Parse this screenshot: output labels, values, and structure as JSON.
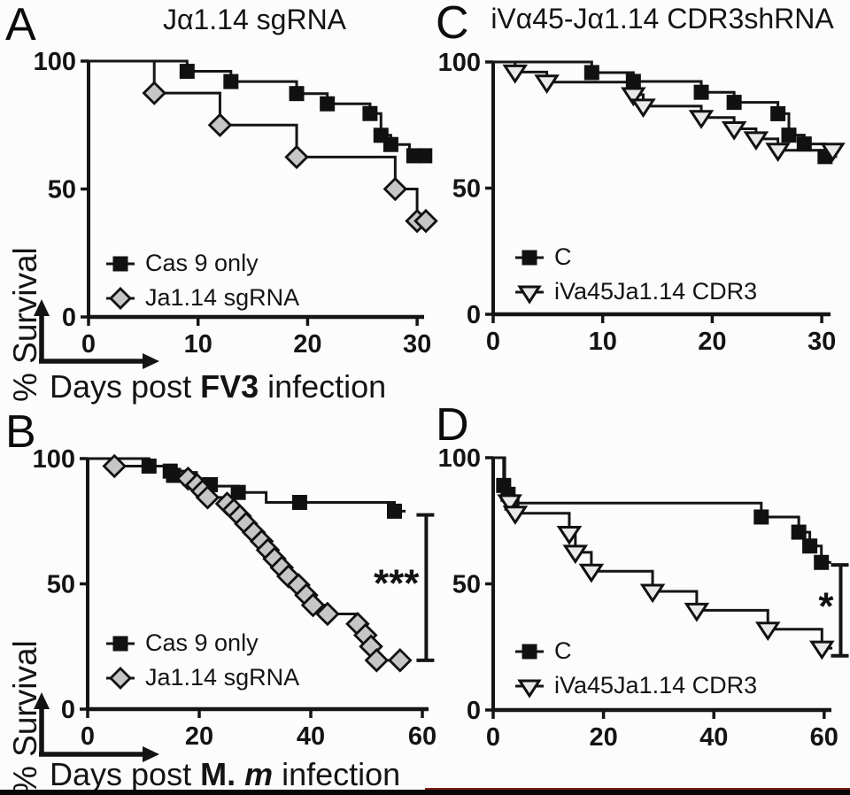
{
  "page": {
    "background": "#fcfcfc",
    "bottom_bar_color": "#070707",
    "bottom_bar_accent_color": "#7c2114"
  },
  "colors": {
    "curve": "#151515",
    "square_fill": "#111111",
    "diamond_fill": "#c6c6c6",
    "triangle_fill": "#e9e9e9",
    "marker_stroke": "#111111"
  },
  "chart_data": [
    {
      "panel": "A",
      "type": "line",
      "style": "kaplan-meier-step-survival",
      "title": "Jα1.14 sgRNA",
      "ylabel": "% Survival",
      "xlabel_parts": [
        {
          "text": "Days post ",
          "style": "normal"
        },
        {
          "text": "FV3",
          "style": "b"
        },
        {
          "text": " infection",
          "style": "normal"
        }
      ],
      "xlim": [
        0,
        31
      ],
      "ylim": [
        0,
        100
      ],
      "xticks": [
        0,
        10,
        20,
        30
      ],
      "yticks": [
        100,
        50,
        0
      ],
      "legend_position": "bottom-left-inside",
      "series": [
        {
          "name": "Cas 9 only",
          "marker": "square",
          "start": 100,
          "end_x": 30.9,
          "steps": [
            [
              9,
              96
            ],
            [
              13,
              92
            ],
            [
              19,
              87.3
            ],
            [
              21.8,
              83.3
            ],
            [
              25.7,
              79.5
            ],
            [
              26.7,
              71
            ],
            [
              27.6,
              67.4
            ],
            [
              29.3,
              63
            ]
          ],
          "marker_points": [
            [
              9,
              96
            ],
            [
              13,
              92
            ],
            [
              19,
              87.3
            ],
            [
              21.8,
              83.3
            ],
            [
              25.7,
              79.5
            ],
            [
              26.7,
              71
            ],
            [
              27.6,
              67.4
            ],
            [
              29.7,
              63
            ],
            [
              30.7,
              63
            ]
          ]
        },
        {
          "name": "Ja1.14 sgRNA",
          "marker": "diamond",
          "start": 100,
          "end_x": 30.9,
          "steps": [
            [
              6,
              87.5
            ],
            [
              12,
              75
            ],
            [
              19,
              62.5
            ],
            [
              28,
              50
            ],
            [
              30,
              37.5
            ]
          ],
          "marker_points": [
            [
              6,
              87.5
            ],
            [
              12,
              75
            ],
            [
              19,
              62.5
            ],
            [
              28,
              50
            ],
            [
              30,
              37.5
            ],
            [
              30.8,
              37.5
            ]
          ]
        }
      ]
    },
    {
      "panel": "B",
      "type": "line",
      "style": "kaplan-meier-step-survival",
      "title": "",
      "ylabel": "% Survival",
      "xlabel_parts": [
        {
          "text": "Days post ",
          "style": "normal"
        },
        {
          "text": "M. ",
          "style": "b"
        },
        {
          "text": "m",
          "style": "bi"
        },
        {
          "text": " infection",
          "style": "normal"
        }
      ],
      "xlim": [
        0,
        60
      ],
      "ylim": [
        0,
        100
      ],
      "xticks": [
        0,
        20,
        40,
        60
      ],
      "yticks": [
        100,
        50,
        0
      ],
      "legend_position": "bottom-left-inside",
      "significance": {
        "label": "***",
        "x": 60.7,
        "top": 77.5,
        "bottom": 19.5
      },
      "series": [
        {
          "name": "Cas 9 only",
          "marker": "square",
          "start": 100,
          "end_x": 57,
          "steps": [
            [
              11,
              97
            ],
            [
              14.8,
              95
            ],
            [
              15.4,
              93.3
            ],
            [
              18.4,
              92
            ],
            [
              21,
              90.3
            ],
            [
              22.5,
              89
            ],
            [
              27,
              86.5
            ],
            [
              32,
              82.5
            ],
            [
              55,
              79
            ]
          ],
          "marker_points": [
            [
              11,
              97
            ],
            [
              14.8,
              95
            ],
            [
              15.4,
              93.3
            ],
            [
              18.4,
              92
            ],
            [
              22,
              89.6
            ],
            [
              27,
              86.5
            ],
            [
              38,
              82.5
            ],
            [
              55,
              79
            ]
          ]
        },
        {
          "name": "Ja1.14 sgRNA",
          "marker": "diamond",
          "start": 100,
          "end_x": 56.3,
          "steps": [
            [
              4.8,
              97
            ],
            [
              14,
              95
            ],
            [
              18,
              92
            ],
            [
              19.6,
              89.5
            ],
            [
              20.6,
              87
            ],
            [
              21.5,
              84.5
            ],
            [
              25,
              82
            ],
            [
              26.2,
              79.5
            ],
            [
              27.3,
              77
            ],
            [
              28.4,
              74
            ],
            [
              29.8,
              70.5
            ],
            [
              31.2,
              67
            ],
            [
              32.3,
              63.5
            ],
            [
              33.5,
              60
            ],
            [
              34.8,
              56.5
            ],
            [
              36,
              53
            ],
            [
              37.8,
              49.5
            ],
            [
              39.2,
              45.5
            ],
            [
              40.4,
              41.5
            ],
            [
              43,
              38
            ],
            [
              48.4,
              34
            ],
            [
              49.8,
              29.5
            ],
            [
              50.8,
              25
            ],
            [
              51.8,
              19.5
            ]
          ],
          "marker_points": [
            [
              4.8,
              97
            ],
            [
              18,
              92
            ],
            [
              19.6,
              89.5
            ],
            [
              20.6,
              87
            ],
            [
              21.5,
              84.5
            ],
            [
              25,
              82
            ],
            [
              26.2,
              79.5
            ],
            [
              27.3,
              77
            ],
            [
              28.4,
              74
            ],
            [
              29.8,
              70.5
            ],
            [
              31.2,
              67
            ],
            [
              32.3,
              63.5
            ],
            [
              33.5,
              60
            ],
            [
              34.8,
              56.5
            ],
            [
              36,
              53
            ],
            [
              37.8,
              49.5
            ],
            [
              39.2,
              45.5
            ],
            [
              40.4,
              41.5
            ],
            [
              43,
              38
            ],
            [
              48.4,
              34
            ],
            [
              49.8,
              29.5
            ],
            [
              50.8,
              25
            ],
            [
              51.8,
              19.5
            ],
            [
              56,
              19.5
            ]
          ]
        }
      ]
    },
    {
      "panel": "C",
      "type": "line",
      "style": "kaplan-meier-step-survival",
      "title": "iVα45-Jα1.14 CDR3shRNA",
      "ylabel": "",
      "xlim": [
        0,
        31
      ],
      "ylim": [
        0,
        100
      ],
      "xticks": [
        0,
        10,
        20,
        30
      ],
      "yticks": [
        100,
        50,
        0
      ],
      "legend_position": "bottom-left-inside",
      "series": [
        {
          "name": "C",
          "marker": "square",
          "start": 100,
          "end_x": 31.4,
          "steps": [
            [
              9,
              95.8
            ],
            [
              12.8,
              92.3
            ],
            [
              19,
              88
            ],
            [
              22,
              84
            ],
            [
              26,
              79.5
            ],
            [
              27,
              71
            ],
            [
              28.4,
              67.5
            ],
            [
              30.3,
              62.5
            ]
          ],
          "marker_points": [
            [
              9,
              95.8
            ],
            [
              12.8,
              92.3
            ],
            [
              19,
              88
            ],
            [
              22,
              84
            ],
            [
              26,
              79.5
            ],
            [
              27,
              71
            ],
            [
              28.4,
              67.5
            ],
            [
              30.3,
              62.5
            ]
          ]
        },
        {
          "name": "iVa45Ja1.14 CDR3",
          "marker": "triangle-down",
          "start": 100,
          "end_x": 31.4,
          "steps": [
            [
              2,
              96
            ],
            [
              4.9,
              92
            ],
            [
              12.8,
              87
            ],
            [
              13.7,
              82.5
            ],
            [
              19,
              78
            ],
            [
              22,
              73.5
            ],
            [
              24,
              69.5
            ],
            [
              26,
              65
            ]
          ],
          "marker_points": [
            [
              2,
              96
            ],
            [
              4.9,
              92
            ],
            [
              12.8,
              87
            ],
            [
              13.7,
              82.5
            ],
            [
              19,
              78
            ],
            [
              22,
              73.5
            ],
            [
              24,
              69.5
            ],
            [
              26,
              65
            ],
            [
              31,
              65
            ]
          ]
        }
      ]
    },
    {
      "panel": "D",
      "type": "line",
      "style": "kaplan-meier-step-survival",
      "title": "",
      "ylabel": "",
      "xlim": [
        0,
        62
      ],
      "ylim": [
        0,
        100
      ],
      "xticks": [
        0,
        20,
        40,
        60
      ],
      "yticks": [
        100,
        50,
        0
      ],
      "legend_position": "bottom-left-inside",
      "significance": {
        "label": "*",
        "x": 63,
        "top": 57.5,
        "bottom": 21.5
      },
      "series": [
        {
          "name": "C",
          "marker": "square",
          "start": 100,
          "end_x": 61.3,
          "steps": [
            [
              1.9,
              89
            ],
            [
              2.7,
              85.5
            ],
            [
              3.4,
              82
            ],
            [
              48.6,
              76.5
            ],
            [
              55.4,
              70.5
            ],
            [
              57.4,
              65
            ],
            [
              59.5,
              58.5
            ]
          ],
          "marker_points": [
            [
              1.9,
              89
            ],
            [
              2.7,
              85.5
            ],
            [
              3.4,
              82
            ],
            [
              48.6,
              76.5
            ],
            [
              55.4,
              70.5
            ],
            [
              57.4,
              65
            ],
            [
              59.5,
              58.5
            ]
          ]
        },
        {
          "name": "iVa45Ja1.14 CDR3",
          "marker": "triangle-down",
          "start": 100,
          "end_x": 61.5,
          "steps": [
            [
              2.1,
              88
            ],
            [
              3,
              82.5
            ],
            [
              4,
              78
            ],
            [
              13.8,
              70
            ],
            [
              14.9,
              62.5
            ],
            [
              17.8,
              55
            ],
            [
              28.9,
              47
            ],
            [
              36.9,
              39.5
            ],
            [
              49.8,
              32
            ],
            [
              59.6,
              24.5
            ]
          ],
          "marker_points": [
            [
              3,
              82.5
            ],
            [
              4,
              78
            ],
            [
              13.8,
              70
            ],
            [
              14.9,
              62.5
            ],
            [
              17.8,
              55
            ],
            [
              28.9,
              47
            ],
            [
              36.9,
              39.5
            ],
            [
              49.8,
              32
            ],
            [
              59.6,
              24.5
            ]
          ]
        }
      ]
    }
  ]
}
